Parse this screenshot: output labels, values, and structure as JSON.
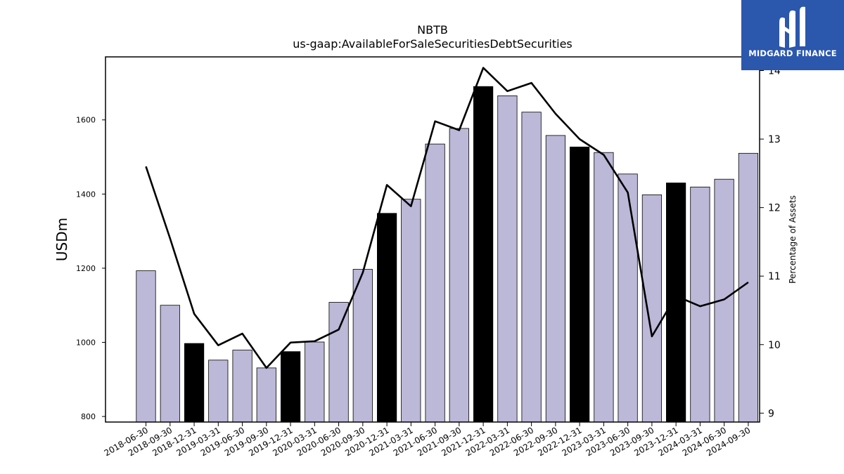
{
  "chart_data": {
    "type": "bar",
    "title": "NBTB",
    "subtitle": "us-gaap:AvailableForSaleSecuritiesDebtSecurities",
    "ylabel": "USDm",
    "y2label": "Percentage of Assets",
    "ylim": [
      785,
      1770
    ],
    "y2lim": [
      8.87,
      14.2
    ],
    "yticks": [
      800,
      1000,
      1200,
      1400,
      1600
    ],
    "y2ticks": [
      9,
      10,
      11,
      12,
      13,
      14
    ],
    "categories": [
      "2018-06-30",
      "2018-09-30",
      "2018-12-31",
      "2019-03-31",
      "2019-06-30",
      "2019-09-30",
      "2019-12-31",
      "2020-03-31",
      "2020-06-30",
      "2020-09-30",
      "2020-12-31",
      "2021-03-31",
      "2021-06-30",
      "2021-09-30",
      "2021-12-31",
      "2022-03-31",
      "2022-06-30",
      "2022-09-30",
      "2022-12-31",
      "2023-03-31",
      "2023-06-30",
      "2023-09-30",
      "2023-12-31",
      "2024-03-31",
      "2024-06-30",
      "2024-09-30"
    ],
    "series": [
      {
        "type": "bar",
        "values": [
          1193,
          1100,
          997,
          952,
          979,
          931,
          975,
          1001,
          1108,
          1197,
          1348,
          1386,
          1535,
          1577,
          1690,
          1665,
          1621,
          1558,
          1527,
          1512,
          1454,
          1398,
          1430,
          1419,
          1440,
          1510
        ]
      },
      {
        "type": "line",
        "axis": "right",
        "values": [
          12.6,
          11.55,
          10.45,
          9.99,
          10.16,
          9.66,
          10.03,
          10.05,
          10.22,
          11.05,
          12.33,
          12.02,
          13.26,
          13.13,
          14.04,
          13.7,
          13.82,
          13.37,
          13.0,
          12.77,
          12.22,
          10.12,
          10.71,
          10.56,
          10.66,
          10.91
        ]
      }
    ],
    "highlight_color": "#000000",
    "bar_color": "#bcb8d8",
    "line_color": "#000000"
  },
  "logo": {
    "text": "MIDGARD FINANCE",
    "color": "#2b57ad"
  }
}
